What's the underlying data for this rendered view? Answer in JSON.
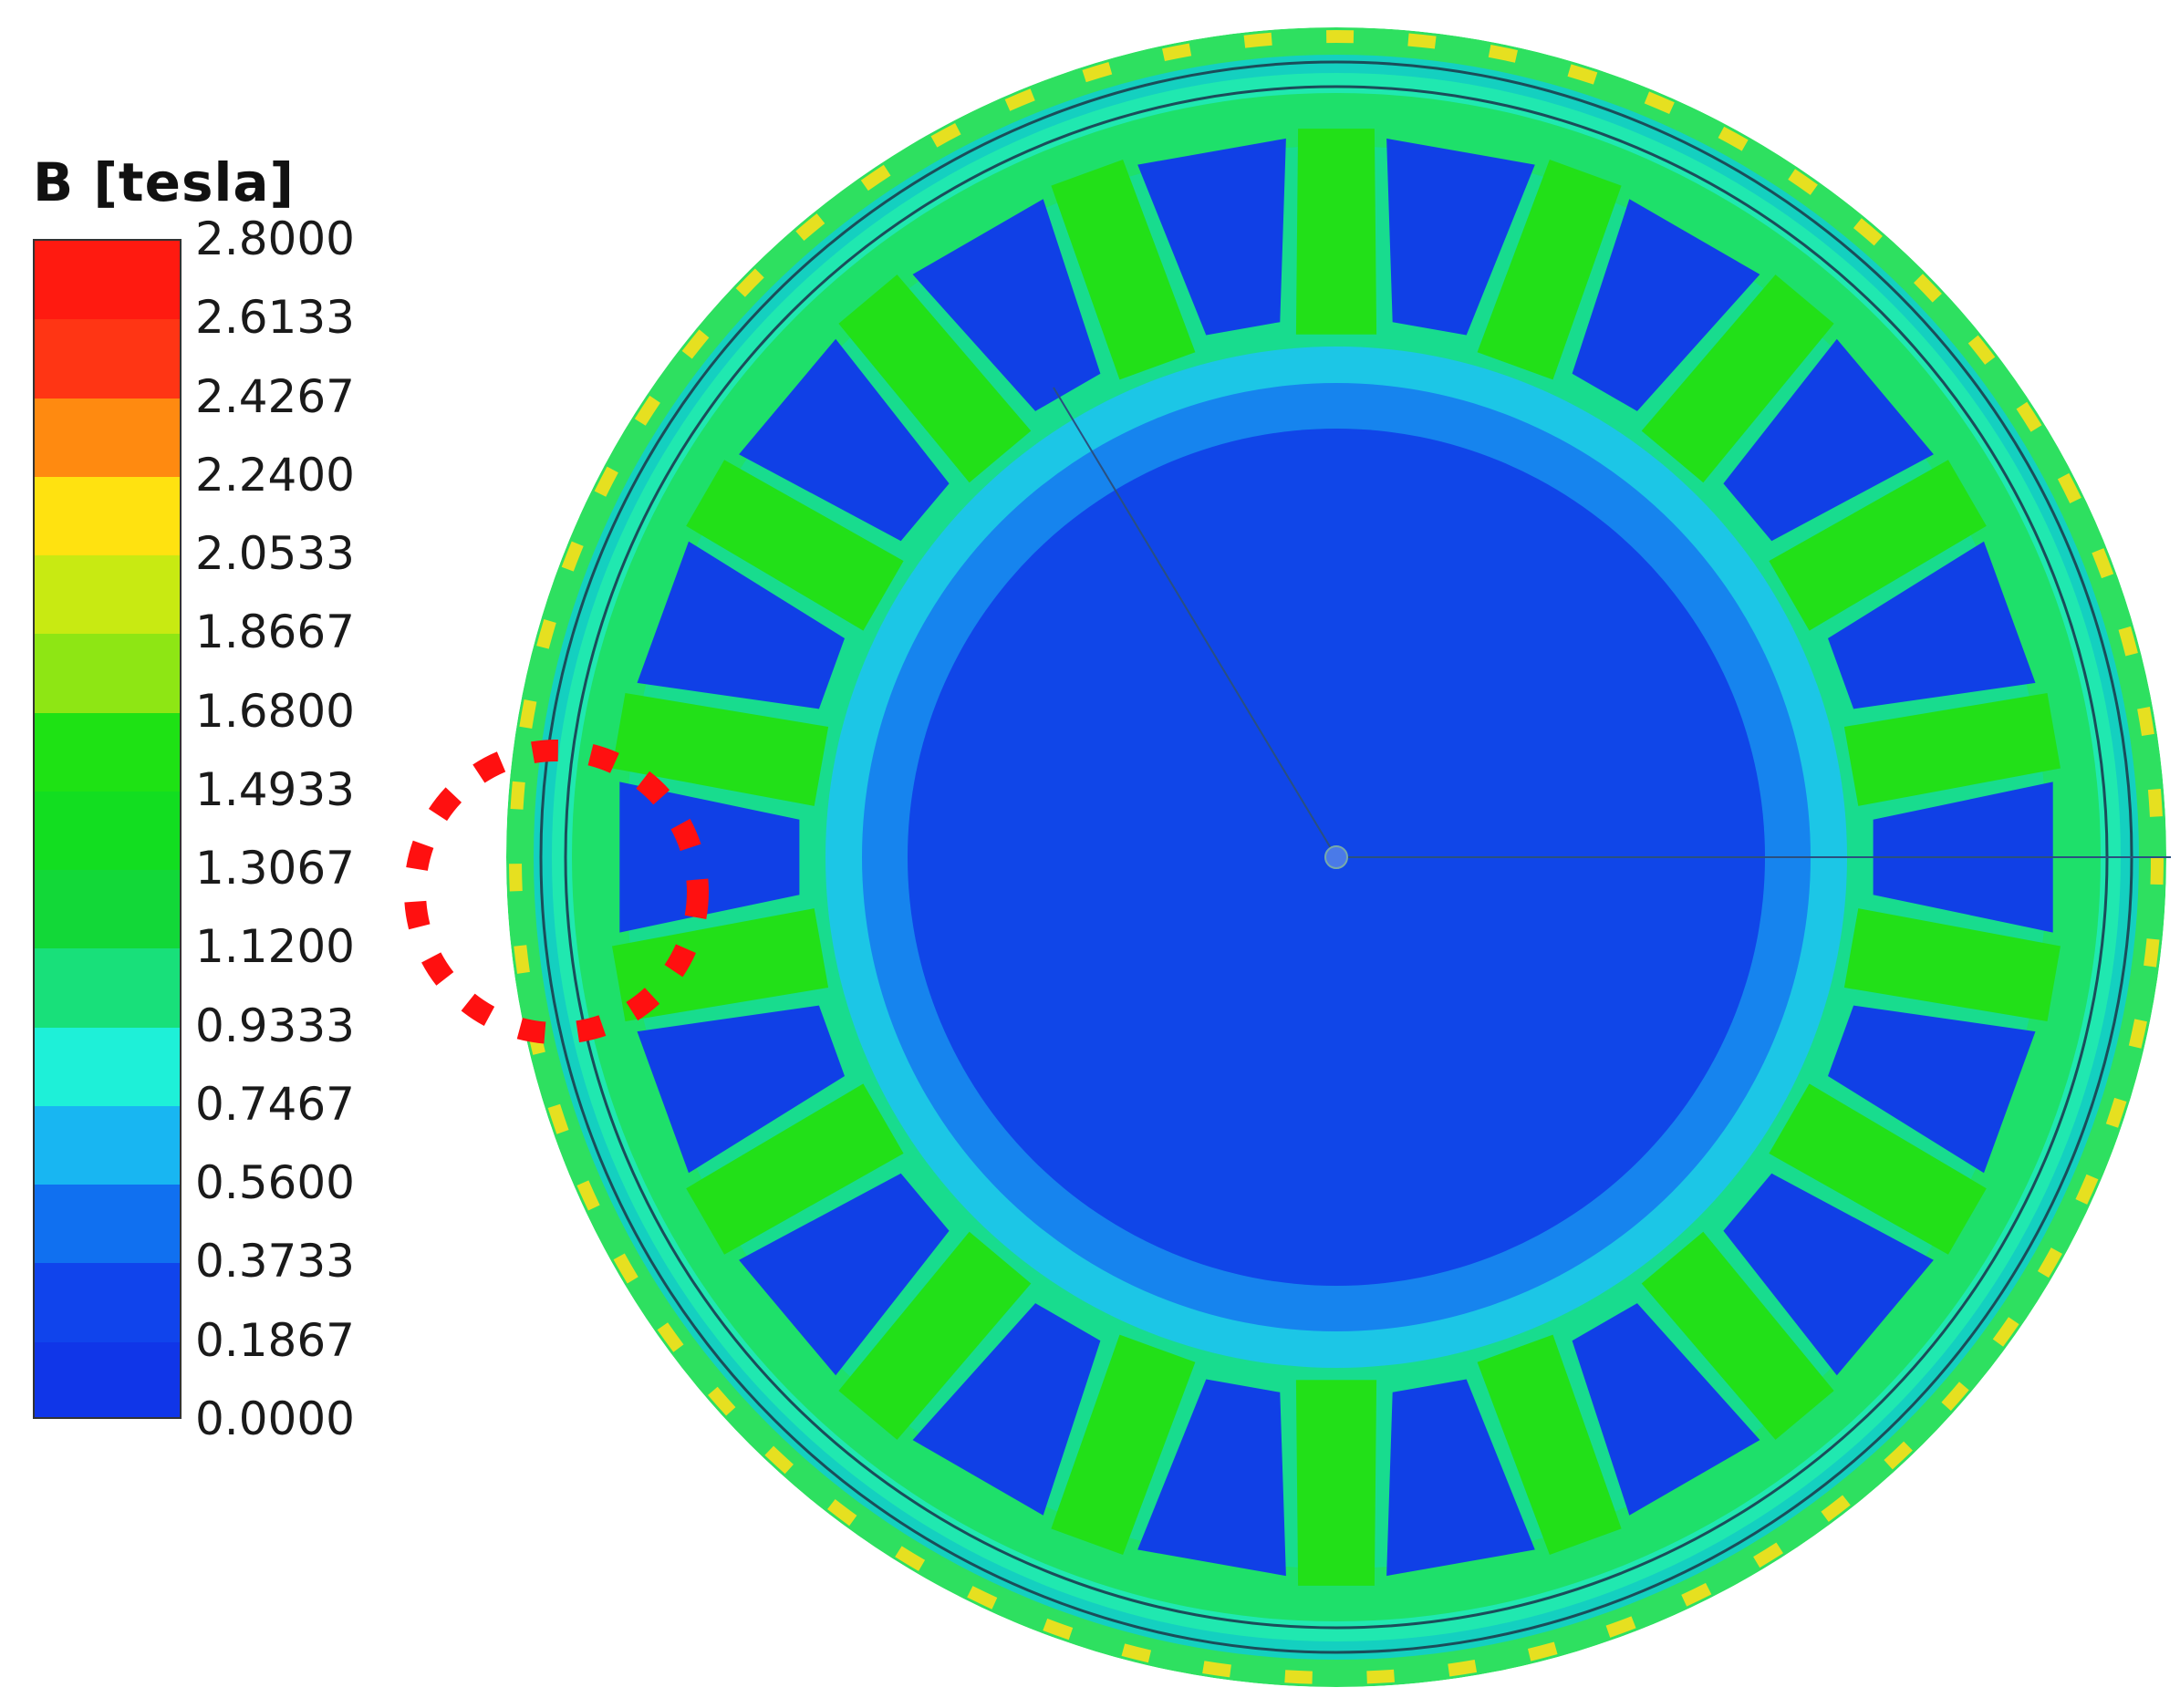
{
  "legend": {
    "title": "B [tesla]",
    "ticks": [
      "2.8000",
      "2.6133",
      "2.4267",
      "2.2400",
      "2.0533",
      "1.8667",
      "1.6800",
      "1.4933",
      "1.3067",
      "1.1200",
      "0.9333",
      "0.7467",
      "0.5600",
      "0.3733",
      "0.1867",
      "0.0000"
    ],
    "band_colors_top_to_bottom": [
      "#ff1a10",
      "#ff3514",
      "#ff8a10",
      "#ffe210",
      "#c8ea12",
      "#8ee614",
      "#1ee214",
      "#12de20",
      "#12d838",
      "#18e07a",
      "#1ef0d8",
      "#18b6f2",
      "#1070f0",
      "#1044ec",
      "#1036e8"
    ]
  },
  "annotation": {
    "shape": "dashed-circle",
    "color": "#ff1010"
  },
  "geometry": {
    "stator_teeth": 18,
    "rotor_regions": "blue"
  }
}
